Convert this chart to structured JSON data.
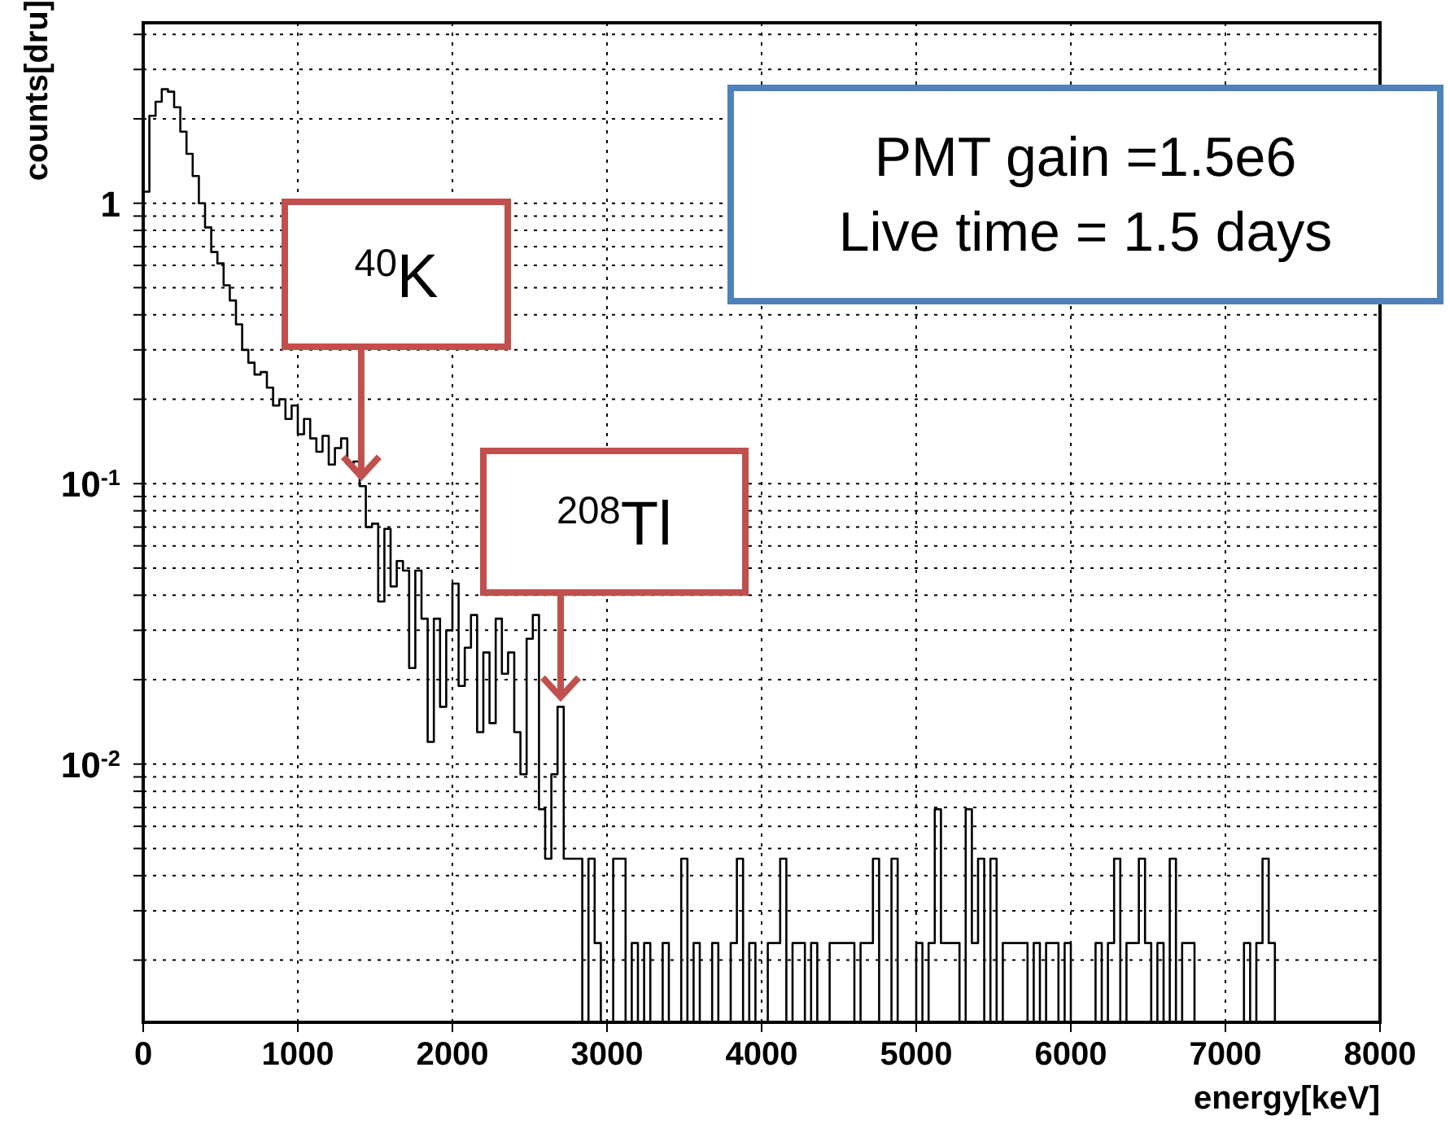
{
  "chart_data": {
    "type": "histogram",
    "xlabel": "energy[keV]",
    "ylabel": "counts[dru]",
    "bins": [
      0,
      40,
      80,
      120,
      160,
      200,
      240,
      280,
      320,
      360,
      400,
      440,
      480,
      520,
      560,
      600,
      640,
      680,
      720,
      760,
      800,
      840,
      880,
      920,
      960,
      1000,
      1040,
      1080,
      1120,
      1160,
      1200,
      1240,
      1280,
      1320,
      1360,
      1400,
      1440,
      1480,
      1520,
      1560,
      1600,
      1640,
      1680,
      1720,
      1760,
      1800,
      1840,
      1880,
      1920,
      1960,
      2000,
      2040,
      2080,
      2120,
      2160,
      2200,
      2240,
      2280,
      2320,
      2360,
      2400,
      2440,
      2480,
      2520,
      2560,
      2600,
      2640,
      2680,
      2720,
      2760,
      2800,
      2840,
      2880,
      2920,
      2960,
      3000,
      3040,
      3080,
      3120,
      3160,
      3200,
      3240,
      3280,
      3320,
      3360,
      3400,
      3440,
      3480,
      3520,
      3560,
      3600,
      3640,
      3680,
      3720,
      3760,
      3800,
      3840,
      3880,
      3920,
      3960,
      4000,
      4040,
      4080,
      4120,
      4160,
      4200,
      4240,
      4280,
      4320,
      4360,
      4400,
      4440,
      4480,
      4520,
      4560,
      4600,
      4640,
      4680,
      4720,
      4760,
      4800,
      4840,
      4880,
      4920,
      4960,
      5000,
      5040,
      5080,
      5120,
      5160,
      5200,
      5240,
      5280,
      5320,
      5360,
      5400,
      5440,
      5480,
      5520,
      5560,
      5600,
      5640,
      5680,
      5720,
      5760,
      5800,
      5840,
      5880,
      5920,
      5960,
      6000,
      6040,
      6080,
      6120,
      6160,
      6200,
      6240,
      6280,
      6320,
      6360,
      6400,
      6440,
      6480,
      6520,
      6560,
      6600,
      6640,
      6680,
      6720,
      6760,
      6800,
      6840,
      6880,
      6920,
      6960,
      7000,
      7040,
      7080,
      7120,
      7160,
      7200,
      7240,
      7280,
      7320,
      7360,
      7400,
      7440,
      7480,
      7520,
      7560,
      7600,
      7640,
      7680,
      7720,
      7760,
      7800,
      7840,
      7880,
      7920,
      7960,
      8000
    ],
    "values": [
      1.1,
      2.05,
      2.3,
      2.55,
      2.5,
      2.2,
      1.8,
      1.5,
      1.25,
      1.0,
      0.82,
      0.67,
      0.61,
      0.51,
      0.45,
      0.37,
      0.3,
      0.27,
      0.245,
      0.25,
      0.22,
      0.19,
      0.2,
      0.17,
      0.19,
      0.15,
      0.17,
      0.145,
      0.13,
      0.148,
      0.117,
      0.134,
      0.145,
      0.117,
      0.12,
      0.098,
      0.07,
      0.072,
      0.038,
      0.069,
      0.043,
      0.053,
      0.049,
      0.022,
      0.049,
      0.033,
      0.012,
      0.033,
      0.016,
      0.03,
      0.044,
      0.019,
      0.026,
      0.034,
      0.013,
      0.025,
      0.014,
      0.033,
      0.021,
      0.025,
      0.013,
      0.0092,
      0.028,
      0.034,
      0.0069,
      0.0046,
      0.0092,
      0.016,
      0.0046,
      0.0046,
      0.0046,
      null,
      0.0046,
      0.0023,
      null,
      null,
      0.0046,
      0.0046,
      null,
      0.0023,
      null,
      0.0023,
      null,
      null,
      0.0023,
      null,
      null,
      0.0046,
      null,
      0.0023,
      null,
      null,
      0.0023,
      null,
      null,
      0.0023,
      0.0046,
      null,
      0.0023,
      null,
      null,
      0.0023,
      0.0023,
      0.0046,
      null,
      0.0023,
      0.0023,
      null,
      0.0023,
      null,
      null,
      0.0023,
      0.0023,
      0.0023,
      0.0023,
      null,
      0.0023,
      0.0023,
      0.0046,
      null,
      null,
      0.0046,
      null,
      null,
      null,
      0.0023,
      null,
      0.0023,
      0.0069,
      0.0023,
      0.0023,
      0.0023,
      null,
      0.0069,
      0.0023,
      0.0046,
      null,
      0.0046,
      null,
      0.0023,
      0.0023,
      0.0023,
      0.0023,
      null,
      0.0023,
      null,
      0.0023,
      0.0023,
      null,
      0.0023,
      null,
      null,
      null,
      null,
      0.0023,
      null,
      0.0023,
      0.0046,
      null,
      0.0023,
      0.0023,
      0.0046,
      0.0023,
      null,
      0.0023,
      null,
      0.0046,
      null,
      0.0023,
      0.0023,
      null,
      null,
      null,
      null,
      null,
      null,
      null,
      null,
      0.0023,
      null,
      0.0023,
      0.0046,
      0.0023,
      null,
      null,
      null,
      null,
      null,
      null,
      null,
      null,
      null,
      null,
      null,
      null,
      null,
      null,
      null,
      null,
      null
    ],
    "color": "#000000",
    "log": "y",
    "grid": true,
    "xlim": [
      0,
      8000
    ],
    "xticks": [
      0,
      1000,
      2000,
      3000,
      4000,
      5000,
      6000,
      7000,
      8000
    ],
    "ylim": [
      0.0012,
      4.4
    ],
    "yticks": [
      {
        "value": 0.002,
        "label": null
      },
      {
        "value": 0.003,
        "label": null
      },
      {
        "value": 0.004,
        "label": null
      },
      {
        "value": 0.005,
        "label": null
      },
      {
        "value": 0.006,
        "label": null
      },
      {
        "value": 0.007,
        "label": null
      },
      {
        "value": 0.008,
        "label": null
      },
      {
        "value": 0.009,
        "label": null
      },
      {
        "value": 0.01,
        "label": "10$^{-2}$"
      },
      {
        "value": 0.02,
        "label": null
      },
      {
        "value": 0.03,
        "label": null
      },
      {
        "value": 0.04,
        "label": null
      },
      {
        "value": 0.05,
        "label": null
      },
      {
        "value": 0.06,
        "label": null
      },
      {
        "value": 0.07,
        "label": null
      },
      {
        "value": 0.08,
        "label": null
      },
      {
        "value": 0.09,
        "label": null
      },
      {
        "value": 0.1,
        "label": "10$^{-1}$"
      },
      {
        "value": 0.2,
        "label": null
      },
      {
        "value": 0.3,
        "label": null
      },
      {
        "value": 0.4,
        "label": null
      },
      {
        "value": 0.5,
        "label": null
      },
      {
        "value": 0.6,
        "label": null
      },
      {
        "value": 0.7,
        "label": null
      },
      {
        "value": 0.8,
        "label": null
      },
      {
        "value": 0.9,
        "label": null
      },
      1,
      {
        "value": 2,
        "label": null
      },
      {
        "value": 3,
        "label": null
      },
      {
        "value": 4,
        "label": null
      }
    ],
    "annotations": [
      {
        "text": "$^{40}$K",
        "x": 1410,
        "y": 0.098
      },
      {
        "text": "$^{208}$Tl",
        "x": 2700,
        "y": 0.016
      },
      "PMT gain =1.5e6",
      "Live time = 1.5 days"
    ]
  }
}
